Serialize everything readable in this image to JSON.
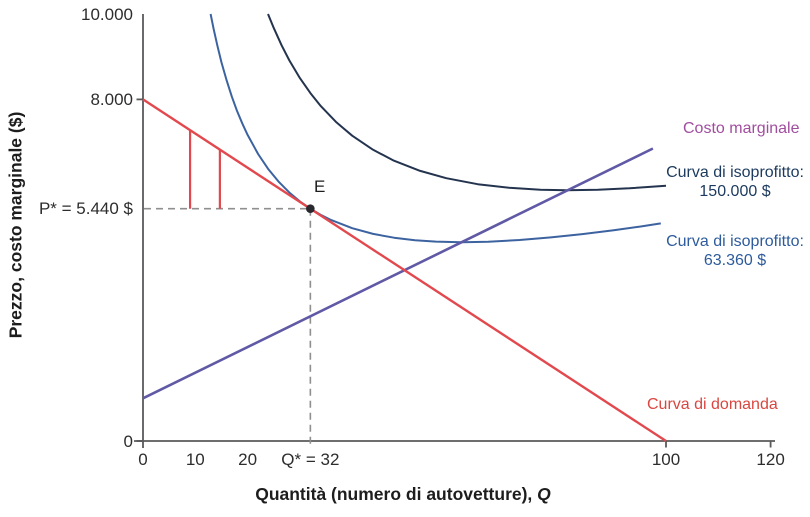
{
  "colors": {
    "axis": "#59595b",
    "tick_text": "#2d2d2d",
    "dashed_guide": "#8f8f8f",
    "equilibrium_point": "#28282e",
    "surplus_marks": "#e2494e"
  },
  "labels": {
    "equilibrium": "E"
  },
  "chart_data": {
    "type": "line",
    "title": "",
    "xlabel": "Quantità (numero di autovetture), Q",
    "xlabel_main": "Quantità (numero di autovetture), ",
    "xlabel_var": "Q",
    "ylabel": "Prezzo, costo marginale ($)",
    "xlim": [
      0,
      120
    ],
    "ylim": [
      0,
      10000
    ],
    "grid": false,
    "legend_position": "right-of-curves",
    "x_ticks": [
      {
        "v": 0,
        "label": "0",
        "tick": false
      },
      {
        "v": 10,
        "label": "10",
        "tick": false
      },
      {
        "v": 20,
        "label": "20",
        "tick": false
      },
      {
        "v": 32,
        "label": "Q* = 32",
        "tick": false
      },
      {
        "v": 100,
        "label": "100",
        "tick": true
      },
      {
        "v": 120,
        "label": "120",
        "tick": true
      }
    ],
    "y_ticks": [
      {
        "v": 0,
        "label": "0",
        "tick": true
      },
      {
        "v": 5440,
        "label": "P* = 5.440 $",
        "tick": false
      },
      {
        "v": 8000,
        "label": "8.000",
        "tick": true
      },
      {
        "v": 10000,
        "label": "10.000",
        "tick": false
      }
    ],
    "series": [
      {
        "id": "demand",
        "name": "Curva di domanda",
        "color": "#e2494e",
        "label_color": "#d8473f",
        "width": 2.4,
        "points": [
          [
            0,
            8000
          ],
          [
            100,
            0
          ]
        ]
      },
      {
        "id": "marginal_cost",
        "name": "Costo marginale",
        "color": "#6059a6",
        "label_color": "#a14d9f",
        "width": 2.6,
        "points": [
          [
            0,
            1000
          ],
          [
            97.5,
            6850
          ]
        ]
      },
      {
        "id": "isoprofit_high",
        "name": "Curva di isoprofitto: 150.000 $",
        "label_line1": "Curva di isoprofitto:",
        "label_line2": "150.000 $",
        "color": "#24344f",
        "label_color": "#1c3a5e",
        "width": 2,
        "points": [
          [
            23.9,
            10000
          ],
          [
            25,
            9670
          ],
          [
            26.5,
            9267
          ],
          [
            28,
            8911
          ],
          [
            30,
            8500
          ],
          [
            32,
            8148
          ],
          [
            34,
            7844
          ],
          [
            37,
            7461
          ],
          [
            40,
            7150
          ],
          [
            44,
            6820
          ],
          [
            48,
            6565
          ],
          [
            53,
            6326
          ],
          [
            58,
            6154
          ],
          [
            64,
            6014
          ],
          [
            70,
            5929
          ],
          [
            76,
            5885
          ],
          [
            81,
            5874
          ],
          [
            87,
            5886
          ],
          [
            93,
            5919
          ],
          [
            100,
            5980
          ]
        ]
      },
      {
        "id": "isoprofit_low",
        "name": "Curva di isoprofitto: 63.360 $",
        "label_line1": "Curva di isoprofitto:",
        "label_line2": "63.360 $",
        "color": "#3c63a0",
        "label_color": "#2d5b9b",
        "width": 2,
        "points": [
          [
            12.93,
            10000
          ],
          [
            13.5,
            9654
          ],
          [
            14.2,
            9268
          ],
          [
            15,
            8874
          ],
          [
            16,
            8440
          ],
          [
            17,
            8061
          ],
          [
            18,
            7727
          ],
          [
            19,
            7431
          ],
          [
            20,
            7168
          ],
          [
            22,
            6722
          ],
          [
            24,
            6360
          ],
          [
            26,
            6063
          ],
          [
            28,
            5817
          ],
          [
            30,
            5612
          ],
          [
            32,
            5440
          ],
          [
            34,
            5295
          ],
          [
            36,
            5173
          ],
          [
            40,
            4984
          ],
          [
            44,
            4851
          ],
          [
            48,
            4760
          ],
          [
            52,
            4702
          ],
          [
            56,
            4669
          ],
          [
            61,
            4656
          ],
          [
            66,
            4667
          ],
          [
            72,
            4707
          ],
          [
            78,
            4768
          ],
          [
            84,
            4846
          ],
          [
            90,
            4937
          ],
          [
            95,
            5022
          ],
          [
            99,
            5095
          ]
        ]
      }
    ],
    "equilibrium": {
      "label": "E",
      "Q": 32,
      "P": 5440
    },
    "guides": {
      "horizontal_to_y_axis": true,
      "vertical_to_x_axis": true,
      "style": "dashed"
    },
    "surplus_marks": [
      {
        "Q": 9,
        "P_top": 7280,
        "P_bottom": 5440
      },
      {
        "Q": 14.7,
        "P_top": 6824,
        "P_bottom": 5440
      }
    ]
  }
}
